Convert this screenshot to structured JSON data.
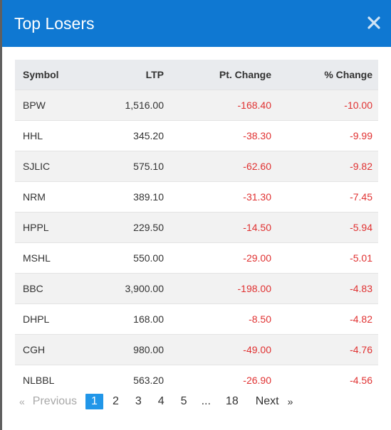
{
  "modal": {
    "title": "Top Losers",
    "close_icon": "close-icon"
  },
  "table": {
    "headers": {
      "symbol": "Symbol",
      "ltp": "LTP",
      "pt_change": "Pt. Change",
      "pct_change": "% Change"
    },
    "rows": [
      {
        "symbol": "BPW",
        "ltp": "1,516.00",
        "pt_change": "-168.40",
        "pct_change": "-10.00"
      },
      {
        "symbol": "HHL",
        "ltp": "345.20",
        "pt_change": "-38.30",
        "pct_change": "-9.99"
      },
      {
        "symbol": "SJLIC",
        "ltp": "575.10",
        "pt_change": "-62.60",
        "pct_change": "-9.82"
      },
      {
        "symbol": "NRM",
        "ltp": "389.10",
        "pt_change": "-31.30",
        "pct_change": "-7.45"
      },
      {
        "symbol": "HPPL",
        "ltp": "229.50",
        "pt_change": "-14.50",
        "pct_change": "-5.94"
      },
      {
        "symbol": "MSHL",
        "ltp": "550.00",
        "pt_change": "-29.00",
        "pct_change": "-5.01"
      },
      {
        "symbol": "BBC",
        "ltp": "3,900.00",
        "pt_change": "-198.00",
        "pct_change": "-4.83"
      },
      {
        "symbol": "DHPL",
        "ltp": "168.00",
        "pt_change": "-8.50",
        "pct_change": "-4.82"
      },
      {
        "symbol": "CGH",
        "ltp": "980.00",
        "pt_change": "-49.00",
        "pct_change": "-4.76"
      },
      {
        "symbol": "NLBBL",
        "ltp": "563.20",
        "pt_change": "-26.90",
        "pct_change": "-4.56"
      }
    ]
  },
  "pagination": {
    "prev_arrow": "«",
    "prev_label": "Previous",
    "pages": [
      "1",
      "2",
      "3",
      "4",
      "5"
    ],
    "ellipsis": "...",
    "last_page": "18",
    "current_page": "1",
    "next_label": "Next",
    "next_arrow": "»"
  },
  "colors": {
    "header_bg": "#0f78d2",
    "negative": "#e03131",
    "active_page": "#2196e8"
  }
}
